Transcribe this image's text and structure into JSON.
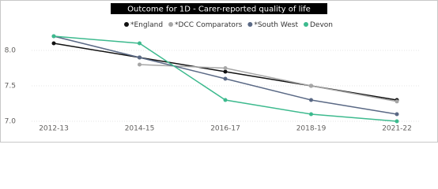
{
  "chart_data": {
    "type": "line",
    "title": "Outcome for 1D - Carer-reported quality of life",
    "categories": [
      "2012-13",
      "2014-15",
      "2016-17",
      "2018-19",
      "2021-22"
    ],
    "series": [
      {
        "name": "*England",
        "color": "#111111",
        "values": [
          8.1,
          7.9,
          7.7,
          7.5,
          7.3
        ]
      },
      {
        "name": "*DCC Comparators",
        "color": "#a6a6a6",
        "values": [
          null,
          7.8,
          7.75,
          7.5,
          7.28
        ]
      },
      {
        "name": "*South West",
        "color": "#5a6985",
        "values": [
          8.2,
          7.9,
          7.6,
          7.3,
          7.1
        ]
      },
      {
        "name": "Devon",
        "color": "#3dba8e",
        "values": [
          8.2,
          8.1,
          7.3,
          7.1,
          7.0
        ]
      }
    ],
    "ylim": [
      7.0,
      8.3
    ],
    "yticks": [
      {
        "value": 7.0,
        "label": "7.0"
      },
      {
        "value": 7.5,
        "label": "7.5"
      },
      {
        "value": 8.0,
        "label": "8.0"
      }
    ],
    "grid": true
  }
}
